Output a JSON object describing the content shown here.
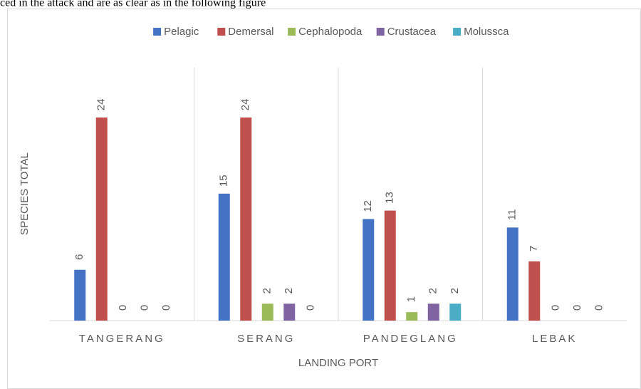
{
  "caption": "ced in the attack and are as clear as in the following figure",
  "chart_data": {
    "type": "bar",
    "xlabel": "LANDING PORT",
    "ylabel": "SPECIES TOTAL",
    "categories": [
      "TANGERANG",
      "SERANG",
      "PANDEGLANG",
      "LEBAK"
    ],
    "series": [
      {
        "name": "Pelagic",
        "color": "#4472c4",
        "values": [
          6,
          15,
          12,
          11
        ]
      },
      {
        "name": "Demersal",
        "color": "#c0504d",
        "values": [
          24,
          24,
          13,
          7
        ]
      },
      {
        "name": "Cephalopoda",
        "color": "#9bbb59",
        "values": [
          0,
          2,
          1,
          0
        ]
      },
      {
        "name": "Crustacea",
        "color": "#8064a2",
        "values": [
          0,
          2,
          2,
          0
        ]
      },
      {
        "name": "Molussca",
        "color": "#4bacc6",
        "values": [
          0,
          0,
          2,
          0
        ]
      }
    ],
    "legend": "top"
  }
}
